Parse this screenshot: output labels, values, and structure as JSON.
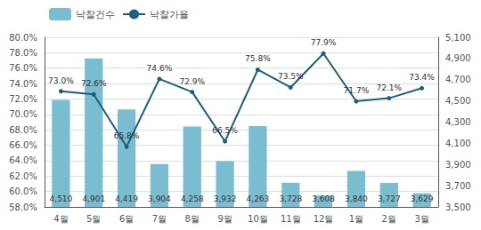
{
  "chart_data": {
    "type": "bar",
    "categories": [
      "4월",
      "5월",
      "6월",
      "7월",
      "8월",
      "9월",
      "10월",
      "11월",
      "12월",
      "1월",
      "2월",
      "3월"
    ],
    "series": [
      {
        "name": "낙찰건수",
        "type": "bar",
        "axis": "y2",
        "color": "#7abdd1",
        "values": [
          4510,
          4901,
          4419,
          3904,
          4258,
          3932,
          4263,
          3728,
          3608,
          3840,
          3727,
          3629
        ],
        "value_labels": [
          "4,510",
          "4,901",
          "4,419",
          "3,904",
          "4,258",
          "3,932",
          "4,263",
          "3,728",
          "3,608",
          "3,840",
          "3,727",
          "3,629"
        ]
      },
      {
        "name": "낙찰가율",
        "type": "line",
        "marker": "circle",
        "color": "#1a6080",
        "values": [
          73.0,
          72.6,
          65.8,
          74.6,
          72.9,
          66.5,
          75.8,
          73.5,
          77.9,
          71.7,
          72.1,
          73.4
        ],
        "value_labels": [
          "73.0%",
          "72.6%",
          "65.8%",
          "74.6%",
          "72.9%",
          "66.5%",
          "75.8%",
          "73.5%",
          "77.9%",
          "71.7%",
          "72.1%",
          "73.4%"
        ]
      }
    ],
    "ylim": [
      58,
      80
    ],
    "yticks": [
      {
        "value": 58,
        "label": "58.0%"
      },
      {
        "value": 60,
        "label": "60.0%"
      },
      {
        "value": 62,
        "label": "62.0%"
      },
      {
        "value": 64,
        "label": "64.0%"
      },
      {
        "value": 66,
        "label": "66.0%"
      },
      {
        "value": 68,
        "label": "68.0%"
      },
      {
        "value": 70,
        "label": "70.0%"
      },
      {
        "value": 72,
        "label": "72.0%"
      },
      {
        "value": 74,
        "label": "74.0%"
      },
      {
        "value": 76,
        "label": "76.0%"
      },
      {
        "value": 78,
        "label": "78.0%"
      },
      {
        "value": 80,
        "label": "80.0%"
      }
    ],
    "y2lim": [
      3500,
      5100
    ],
    "y2ticks": [
      {
        "value": 3500,
        "label": "3,500"
      },
      {
        "value": 3700,
        "label": "3,700"
      },
      {
        "value": 3900,
        "label": "3,900"
      },
      {
        "value": 4100,
        "label": "4,100"
      },
      {
        "value": 4300,
        "label": "4,300"
      },
      {
        "value": 4500,
        "label": "4,500"
      },
      {
        "value": 4700,
        "label": "4,700"
      },
      {
        "value": 4900,
        "label": "4,900"
      },
      {
        "value": 5100,
        "label": "5,100"
      }
    ],
    "grid": true,
    "legend": "upper left",
    "data_labels": true
  }
}
